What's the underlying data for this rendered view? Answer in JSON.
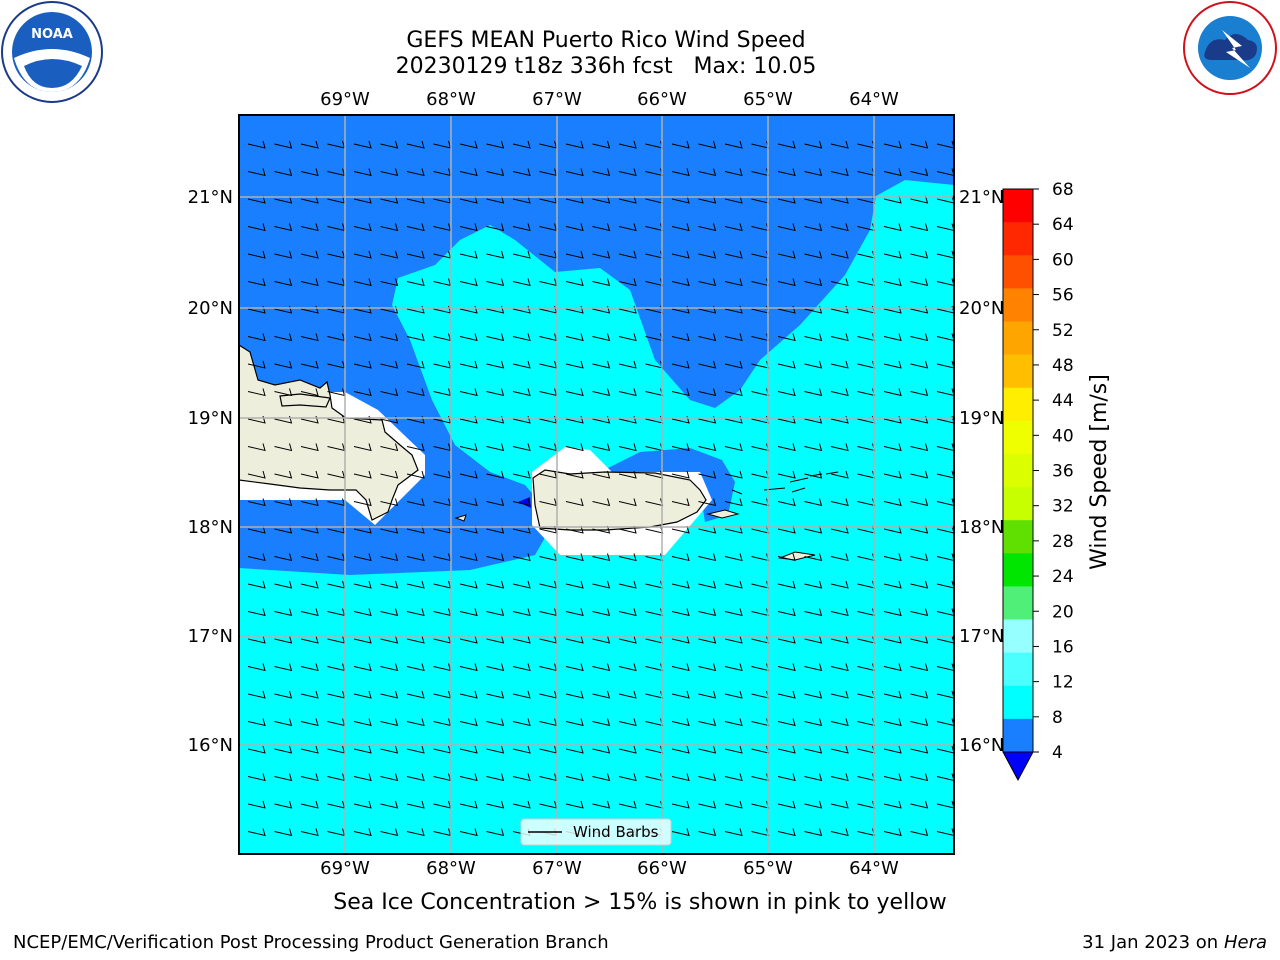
{
  "title": {
    "line1": "GEFS MEAN Puerto Rico Wind Speed",
    "line2": "20230129 t18z 336h fcst   Max: 10.05"
  },
  "map": {
    "lon_labels": [
      "69°W",
      "68°W",
      "67°W",
      "66°W",
      "65°W",
      "64°W"
    ],
    "lat_labels": [
      "21°N",
      "20°N",
      "19°N",
      "18°N",
      "17°N",
      "16°N"
    ],
    "legend_label": "Wind Barbs",
    "colors": {
      "sea_low": "#1a7fff",
      "sea_mid": "#00ffff",
      "land": "#eeeedc",
      "min_blue": "#0000e6"
    }
  },
  "colorbar": {
    "label": "Wind Speed [m/s]",
    "ticks": [
      "68",
      "64",
      "60",
      "56",
      "52",
      "48",
      "44",
      "40",
      "36",
      "32",
      "28",
      "24",
      "20",
      "16",
      "12",
      "8",
      "4"
    ],
    "colors": [
      "#ff0000",
      "#ff2800",
      "#ff5000",
      "#ff8200",
      "#ffa500",
      "#ffbe00",
      "#ffee00",
      "#f0ff00",
      "#dcff00",
      "#c8ff00",
      "#60e000",
      "#00e600",
      "#50f078",
      "#96ffff",
      "#4bffff",
      "#00ffff",
      "#1a7fff"
    ],
    "extend_color": "#0000ff"
  },
  "logos": {
    "noaa": "NOAA",
    "nws": "NATIONAL WEATHER SERVICE"
  },
  "footer": {
    "note": "Sea Ice Concentration > 15% is shown in pink to yellow",
    "left": "NCEP/EMC/Verification Post Processing Product Generation Branch",
    "right_date": "31 Jan 2023 on",
    "right_host": "Hera"
  }
}
